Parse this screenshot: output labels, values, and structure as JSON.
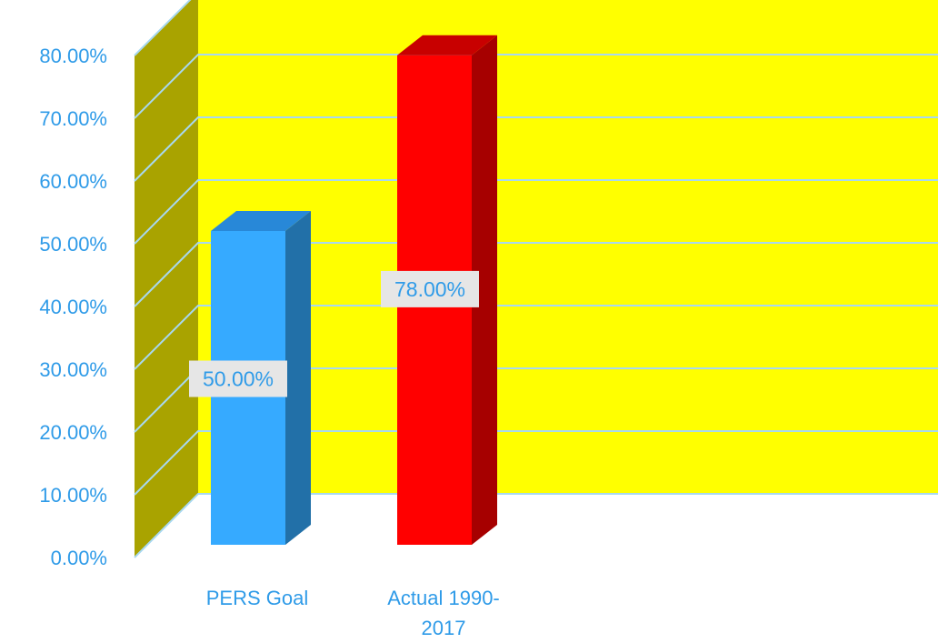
{
  "chart_data": {
    "type": "bar",
    "categories": [
      "PERS Goal",
      "Actual 1990-2017"
    ],
    "category_lines": [
      [
        "PERS Goal"
      ],
      [
        "Actual 1990-",
        "2017"
      ]
    ],
    "values": [
      0.5,
      0.78
    ],
    "data_labels": [
      "50.00%",
      "78.00%"
    ],
    "y_ticks": [
      0,
      0.1,
      0.2,
      0.3,
      0.4,
      0.5,
      0.6,
      0.7,
      0.8
    ],
    "y_tick_labels": [
      "0.00%",
      "10.00%",
      "20.00%",
      "30.00%",
      "40.00%",
      "50.00%",
      "60.00%",
      "70.00%",
      "80.00%"
    ],
    "ylim": [
      0,
      0.8
    ],
    "title": "",
    "xlabel": "",
    "ylabel": "",
    "grid": true,
    "legend": "none",
    "three_d": true,
    "colors": {
      "wall": "#ffff00",
      "side_wall": "#a9a300",
      "gridline": "#a8d8f0",
      "text": "#2f9be8",
      "label_bg": "#e6e6e6",
      "bar_front": [
        "#36aaff",
        "#ff0000"
      ],
      "bar_side": [
        "#2270a8",
        "#a60000"
      ],
      "bar_top": [
        "#2888d8",
        "#c80000"
      ]
    }
  }
}
